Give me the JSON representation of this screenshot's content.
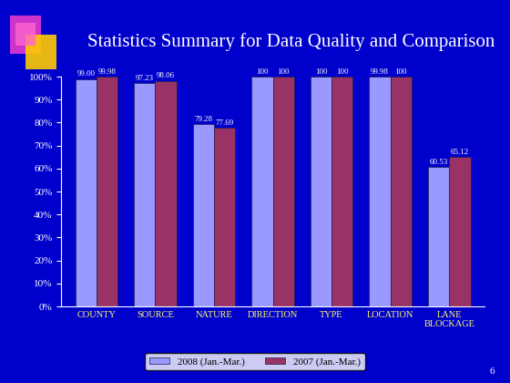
{
  "chart_data": {
    "type": "bar",
    "title": "Statistics Summary for Data Quality and Comparison",
    "page_number": "6",
    "categories": [
      "COUNTY",
      "SOURCE",
      "NATURE",
      "DIRECTION",
      "TYPE",
      "LOCATION",
      "LANE BLOCKAGE"
    ],
    "series": [
      {
        "name": "2008 (Jan.-Mar.)",
        "color": "#9999ff",
        "values": [
          99.0,
          97.23,
          79.28,
          100,
          100,
          99.98,
          60.53
        ],
        "value_labels": [
          "99.00",
          "97.23",
          "79.28",
          "100",
          "100",
          "99.98",
          "60.53"
        ]
      },
      {
        "name": "2007 (Jan.-Mar.)",
        "color": "#993366",
        "values": [
          99.98,
          98.06,
          77.69,
          100,
          100,
          100,
          65.12
        ],
        "value_labels": [
          "99.98",
          "98.06",
          "77.69",
          "100",
          "100",
          "100",
          "65.12"
        ]
      }
    ],
    "ylim": [
      0,
      100
    ],
    "yticks": [
      {
        "value": 0,
        "label": "0%"
      },
      {
        "value": 10,
        "label": "10%"
      },
      {
        "value": 20,
        "label": "20%"
      },
      {
        "value": 30,
        "label": "30%"
      },
      {
        "value": 40,
        "label": "40%"
      },
      {
        "value": 50,
        "label": "50%"
      },
      {
        "value": 60,
        "label": "60%"
      },
      {
        "value": 70,
        "label": "70%"
      },
      {
        "value": 80,
        "label": "80%"
      },
      {
        "value": 90,
        "label": "90%"
      },
      {
        "value": 100,
        "label": "100%"
      }
    ],
    "grid": false,
    "legend": "lower center",
    "data_labels": true
  }
}
